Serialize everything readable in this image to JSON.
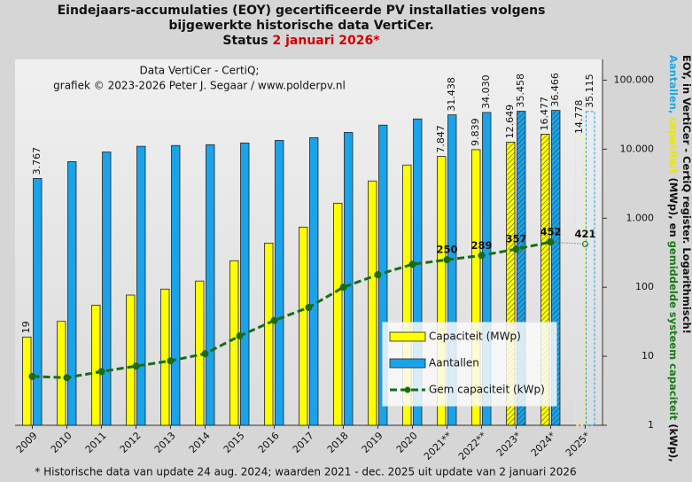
{
  "chart_data": {
    "type": "bar",
    "title": [
      [
        {
          "text": "Eindejaars-accumulaties (EOY) gecertificeerde PV installaties volgens",
          "color": "#111111"
        }
      ],
      [
        {
          "text": "bijgewerkte historische data VertiCer.",
          "color": "#111111"
        }
      ],
      [
        {
          "text": "Status ",
          "color": "#111111"
        },
        {
          "text": "2 januari 2026*",
          "color": "#cc0000"
        }
      ]
    ],
    "side_label": [
      [
        {
          "text": "Aantallen, ",
          "color": "#1fa8e0"
        },
        {
          "text": "capaciteit ",
          "color": "#e8e800"
        },
        {
          "text": "(MWp), en ",
          "color": "#111111"
        },
        {
          "text": "gemiddelde systeem capaciteit ",
          "color": "#1a7a1a"
        },
        {
          "text": "(kWp),",
          "color": "#111111"
        }
      ],
      [
        {
          "text": "EOY, in VertiCer - CertiQ register. Logarithmisch!",
          "color": "#111111"
        }
      ]
    ],
    "annotations": [
      "Data VertiCer - CertiQ;",
      "grafiek © 2023-2026 Peter J. Segaar / www.polderpv.nl"
    ],
    "footnote": "* Historische data van update 24 aug. 2024; waarden 2021 - dec. 2025 uit update van 2 januari 2026",
    "categories": [
      "2009",
      "2010",
      "2011",
      "2012",
      "2013",
      "2014",
      "2015",
      "2016",
      "2017",
      "2018",
      "2019",
      "2020",
      "2021**",
      "2022**",
      "2023*",
      "2024*",
      "2025*"
    ],
    "bar_style": [
      "solid",
      "solid",
      "solid",
      "solid",
      "solid",
      "solid",
      "solid",
      "solid",
      "solid",
      "solid",
      "solid",
      "solid",
      "solid",
      "solid",
      "hatched",
      "hatched",
      "dashed"
    ],
    "series": [
      {
        "name": "Capaciteit (MWp)",
        "color": "#ffff00",
        "kind": "bar",
        "values": [
          19,
          32,
          55,
          77,
          94,
          123,
          242,
          436,
          743,
          1650,
          3460,
          5900,
          7847,
          9839,
          12649,
          16477,
          14778
        ],
        "value_labels": [
          "19",
          null,
          null,
          null,
          null,
          null,
          null,
          null,
          null,
          null,
          null,
          null,
          "7.847",
          "9.839",
          "12.649",
          "16.477",
          "14.778"
        ]
      },
      {
        "name": "Aantallen",
        "color": "#1aa3e8",
        "kind": "bar",
        "values": [
          3767,
          6600,
          9100,
          11000,
          11300,
          11600,
          12300,
          13400,
          14700,
          17500,
          22300,
          27400,
          31438,
          34030,
          35458,
          36466,
          35115
        ],
        "value_labels": [
          "3.767",
          null,
          null,
          null,
          null,
          null,
          null,
          null,
          null,
          null,
          null,
          null,
          "31.438",
          "34.030",
          "35.458",
          "36.466",
          "35.115"
        ]
      },
      {
        "name": "Gem capaciteit (kWp)",
        "color": "#1a6b1a",
        "kind": "line",
        "values": [
          5.1,
          4.9,
          6.0,
          7.2,
          8.6,
          10.9,
          19.7,
          33,
          51,
          100,
          152,
          215,
          250,
          289,
          357,
          452,
          421
        ],
        "value_labels": [
          null,
          null,
          null,
          null,
          null,
          null,
          null,
          null,
          null,
          null,
          null,
          null,
          "250",
          "289",
          "357",
          "452",
          "421"
        ]
      }
    ],
    "ylim": [
      1,
      200000
    ],
    "log_scale": true,
    "yticks": [
      1,
      10,
      100,
      {
        "value": 1000,
        "label": "1.000"
      },
      {
        "value": 10000,
        "label": "10.000"
      },
      {
        "value": 100000,
        "label": "100.000"
      }
    ],
    "grid": false
  }
}
